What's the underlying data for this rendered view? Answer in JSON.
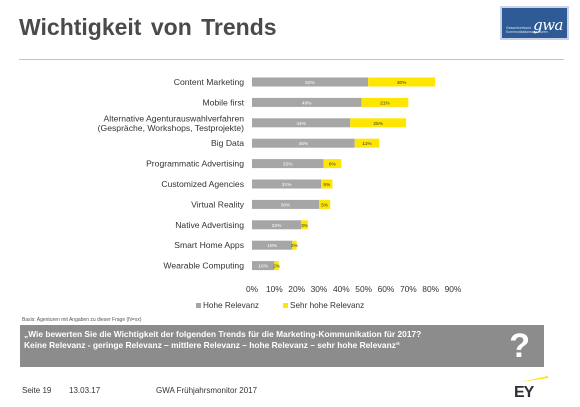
{
  "page": {
    "title": "Wichtigkeit von Trends",
    "logo_text": "gwa",
    "logo_subtext": "Gesamtverband Kommunikationsagenturen"
  },
  "colors": {
    "hohe": "#a6a6a6",
    "sehr_hohe": "#ffe600",
    "accent_rule": "#f0cc2a",
    "question_bg": "#8c8c8c"
  },
  "chart_data": {
    "type": "bar",
    "orientation": "horizontal",
    "stacked": true,
    "categories": [
      [
        "Content Marketing"
      ],
      [
        "Mobile first"
      ],
      [
        "Alternative Agenturauswahlverfahren",
        "(Gespräche, Workshops, Testprojekte)"
      ],
      [
        "Big Data"
      ],
      [
        "Programmatic Advertising"
      ],
      [
        "Customized Agencies"
      ],
      [
        "Virtual Reality"
      ],
      [
        "Native Advertising"
      ],
      [
        "Smart Home Apps"
      ],
      [
        "Wearable Computing"
      ]
    ],
    "series": [
      {
        "name": "Hohe Relevanz",
        "values": [
          52,
          49,
          44,
          46,
          32,
          31,
          30,
          22,
          18,
          10
        ],
        "labels": [
          "52%",
          "49%",
          "44%",
          "46%",
          "32%",
          "31%",
          "30%",
          "22%",
          "18%",
          "10%"
        ]
      },
      {
        "name": "Sehr hohe Relevanz",
        "values": [
          30,
          21,
          25,
          11,
          8,
          5,
          5,
          3,
          2,
          2
        ],
        "labels": [
          "30%",
          "21%",
          "25%",
          "11%",
          "8%",
          "5%",
          "5%",
          "3%",
          "2%",
          "2%"
        ]
      }
    ],
    "xlim": [
      0,
      90
    ],
    "ticks": [
      "0%",
      "10%",
      "20%",
      "30%",
      "40%",
      "50%",
      "60%",
      "70%",
      "80%",
      "90%"
    ],
    "legend": "bottom",
    "grid": false
  },
  "basis_note": "Basis: Agenturen mit Angaben zu dieser Frage (N=xx)",
  "question": {
    "line1": "„Wie bewerten Sie die Wichtigkeit der folgenden Trends für die Marketing-Kommunikation für 2017?",
    "line2": "Keine Relevanz - geringe Relevanz – mittlere Relevanz – hohe Relevanz – sehr hohe Relevanz“",
    "mark": "?"
  },
  "footer": {
    "page": "Seite 19",
    "date": "13.03.17",
    "source": "GWA Frühjahrsmonitor 2017",
    "brand": "EY"
  }
}
